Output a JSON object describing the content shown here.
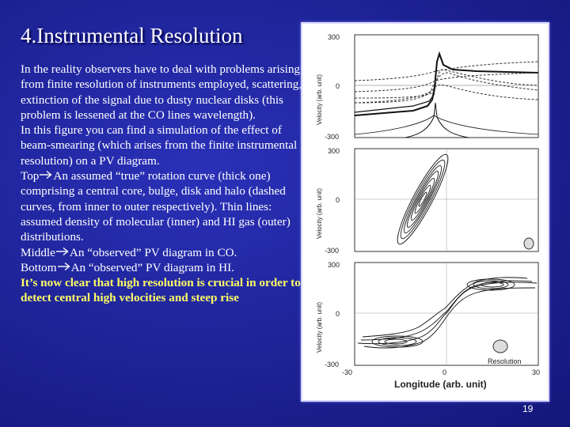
{
  "slide": {
    "title": "4.Instrumental Resolution",
    "page_number": "19",
    "paragraphs": [
      "In the reality observers have to deal with problems arising from finite resolution of instruments employed, scattering, extinction of the signal due to dusty nuclear disks (this problem is lessened at the CO lines wavelength).",
      "In this figure you can find a simulation of the effect of beam-smearing (which arises from the finite instrumental resolution) on a PV diagram.",
      "An assumed “true” rotation curve (thick one) comprising a central core, bulge, disk and halo (dashed curves, from inner to outer respectively). Thin lines: assumed density of molecular (inner) and HI gas (outer) distributions.",
      "An “observed” PV diagram in CO.",
      "An “observed” PV diagram in HI.",
      "It’s now clear that high resolution is crucial in order to detect central high velocities and steep rise"
    ],
    "prefixes": {
      "top": "Top",
      "middle": "Middle",
      "bottom": "Bottom"
    }
  },
  "figure": {
    "y_label": "Velocity (arb. unit)",
    "y_ticks": [
      "300",
      "0",
      "-300"
    ],
    "x_ticks": [
      "-30",
      "0",
      "30"
    ],
    "x_label": "Longitude (arb. unit)",
    "resolution_label": "Resolution"
  }
}
